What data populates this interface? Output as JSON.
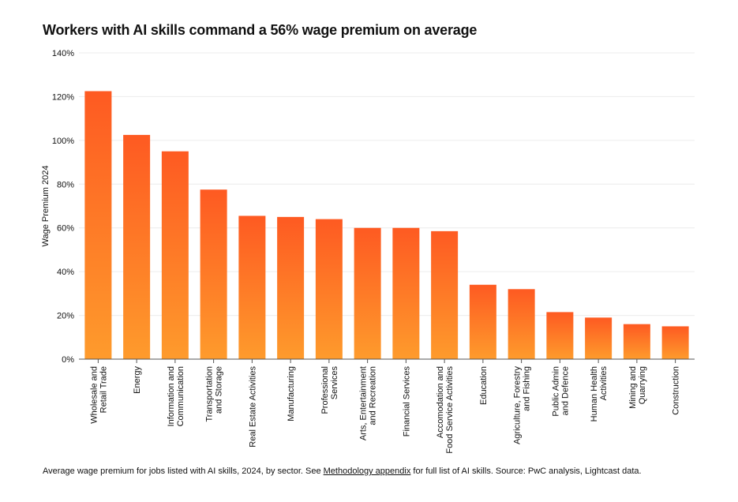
{
  "chart_data": {
    "type": "bar",
    "title": "Workers with AI skills command a 56% wage premium on average",
    "ylabel": "Wage Premium 2024",
    "xlabel": "",
    "ylim": [
      0,
      140
    ],
    "yticks": [
      0,
      20,
      40,
      60,
      80,
      100,
      120,
      140
    ],
    "ytick_labels": [
      "0%",
      "20%",
      "40%",
      "60%",
      "80%",
      "100%",
      "120%",
      "140%"
    ],
    "grid": true,
    "categories": [
      [
        "Wholesale and",
        "Retail Trade"
      ],
      [
        "Energy"
      ],
      [
        "Information and",
        "Communication"
      ],
      [
        "Transportation",
        "and Storage"
      ],
      [
        "Real Estate Activities"
      ],
      [
        "Manufacturing"
      ],
      [
        "Professional",
        "Services"
      ],
      [
        "Arts, Entertainment",
        "and Recreation"
      ],
      [
        "Financial Services"
      ],
      [
        "Accomodation and",
        "Food Service Activities"
      ],
      [
        "Education"
      ],
      [
        "Agriculture, Forestry",
        "and Fishing"
      ],
      [
        "Public Admin",
        "and Defence"
      ],
      [
        "Human Health",
        "Activities"
      ],
      [
        "Mining and",
        "Quarrying"
      ],
      [
        "Construction"
      ]
    ],
    "values": [
      122.5,
      102.5,
      95,
      77.5,
      65.5,
      65,
      64,
      60,
      60,
      58.5,
      34,
      32,
      21.5,
      19,
      16,
      15
    ],
    "colors": {
      "bar_top": "#fe5a22",
      "bar_bottom": "#fe9b2c",
      "grid": "#ececec",
      "axis": "#555555"
    }
  },
  "footnote": {
    "before": "Average wage premium for jobs listed with AI skills, 2024, by sector. See ",
    "link": "Methodology appendix",
    "after": " for full list of AI skills. Source: PwC analysis, Lightcast data."
  }
}
